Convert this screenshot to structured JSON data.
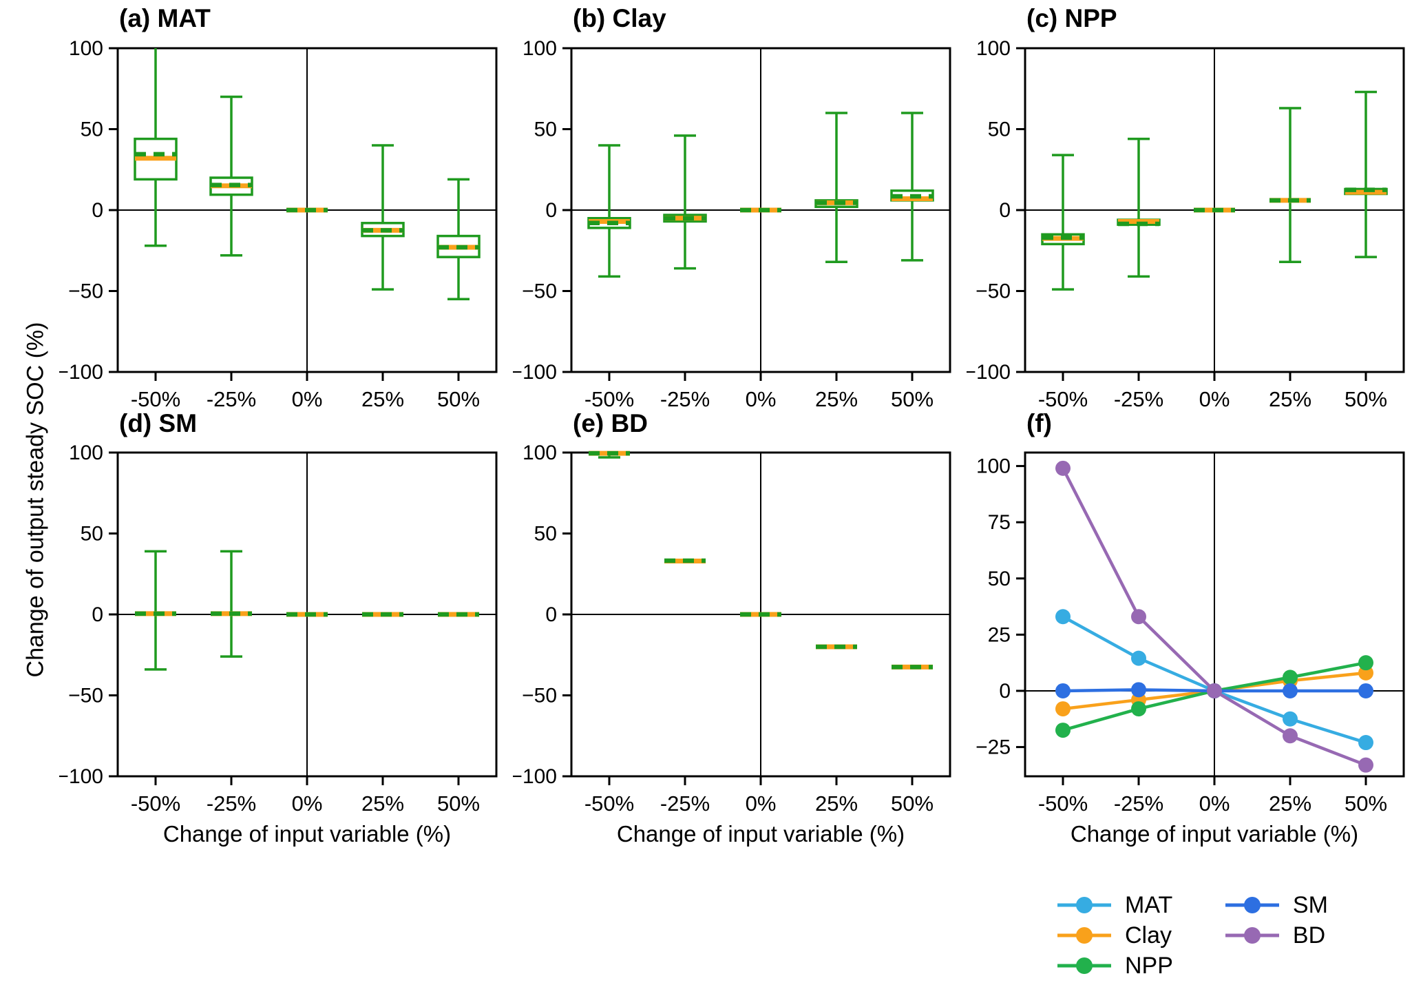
{
  "figure": {
    "ylabel": "Change of output steady SOC (%)",
    "xlabel": "Change of input variable (%)",
    "background": "#ffffff"
  },
  "colors": {
    "box_green": "#1f9a1f",
    "median_orange": "#f9a11b",
    "axis_black": "#000000",
    "MAT": "#36ace2",
    "Clay": "#f9a11b",
    "NPP": "#22b14c",
    "SM": "#2d6fe1",
    "BD": "#9769b3"
  },
  "legend": {
    "items": [
      {
        "label": "MAT",
        "color_key": "MAT"
      },
      {
        "label": "Clay",
        "color_key": "Clay"
      },
      {
        "label": "NPP",
        "color_key": "NPP"
      },
      {
        "label": "SM",
        "color_key": "SM"
      },
      {
        "label": "BD",
        "color_key": "BD"
      }
    ]
  },
  "chart_data": [
    {
      "id": "a",
      "type": "box",
      "title": "(a) MAT",
      "categories": [
        "-50%",
        "-25%",
        "0%",
        "25%",
        "50%"
      ],
      "ylim": [
        -100,
        100
      ],
      "yticks": [
        100,
        50,
        0,
        -50,
        -100
      ],
      "yticklabels": [
        "100",
        "50",
        "0",
        "−50",
        "−100"
      ],
      "boxes": [
        {
          "whislo": -22,
          "q1": 19,
          "med": 32,
          "mean": 34.5,
          "q3": 44,
          "whishi": 100,
          "cap_hi": false
        },
        {
          "whislo": -28,
          "q1": 9.5,
          "med": 15,
          "mean": 15.5,
          "q3": 20,
          "whishi": 70
        },
        {
          "whislo": 0,
          "q1": 0,
          "med": 0,
          "mean": 0,
          "q3": 0,
          "whishi": 0
        },
        {
          "whislo": -49,
          "q1": -16,
          "med": -12.5,
          "mean": -12.5,
          "q3": -8,
          "whishi": 40
        },
        {
          "whislo": -55,
          "q1": -29,
          "med": -23,
          "mean": -23,
          "q3": -16,
          "whishi": 19
        }
      ]
    },
    {
      "id": "b",
      "type": "box",
      "title": "(b) Clay",
      "categories": [
        "-50%",
        "-25%",
        "0%",
        "25%",
        "50%"
      ],
      "ylim": [
        -100,
        100
      ],
      "yticks": [
        100,
        50,
        0,
        -50,
        -100
      ],
      "yticklabels": [
        "100",
        "50",
        "0",
        "−50",
        "−100"
      ],
      "boxes": [
        {
          "whislo": -41,
          "q1": -11,
          "med": -7,
          "mean": -8,
          "q3": -5,
          "whishi": 40
        },
        {
          "whislo": -36,
          "q1": -7,
          "med": -5,
          "mean": -5,
          "q3": -3,
          "whishi": 46
        },
        {
          "whislo": 0,
          "q1": 0,
          "med": 0,
          "mean": 0,
          "q3": 0,
          "whishi": 0
        },
        {
          "whislo": -32,
          "q1": 2,
          "med": 4.5,
          "mean": 4.5,
          "q3": 6,
          "whishi": 60
        },
        {
          "whislo": -31,
          "q1": 6,
          "med": 7,
          "mean": 8.5,
          "q3": 12,
          "whishi": 60
        }
      ]
    },
    {
      "id": "c",
      "type": "box",
      "title": "(c) NPP",
      "categories": [
        "-50%",
        "-25%",
        "0%",
        "25%",
        "50%"
      ],
      "ylim": [
        -100,
        100
      ],
      "yticks": [
        100,
        50,
        0,
        -50,
        -100
      ],
      "yticklabels": [
        "100",
        "50",
        "0",
        "−50",
        "−100"
      ],
      "boxes": [
        {
          "whislo": -49,
          "q1": -21,
          "med": -17.5,
          "mean": -17,
          "q3": -15,
          "whishi": 34
        },
        {
          "whislo": -41,
          "q1": -9,
          "med": -7,
          "mean": -8.5,
          "q3": -6,
          "whishi": 44
        },
        {
          "whislo": 0,
          "q1": 0,
          "med": 0,
          "mean": 0,
          "q3": 0,
          "whishi": 0
        },
        {
          "whislo": -32,
          "q1": 4.5,
          "med": 6,
          "mean": 6,
          "q3": 7,
          "whishi": 63
        },
        {
          "whislo": -29,
          "q1": 10,
          "med": 11,
          "mean": 12.5,
          "q3": 13,
          "whishi": 73
        }
      ]
    },
    {
      "id": "d",
      "type": "box",
      "title": "(d) SM",
      "categories": [
        "-50%",
        "-25%",
        "0%",
        "25%",
        "50%"
      ],
      "ylim": [
        -100,
        100
      ],
      "yticks": [
        100,
        50,
        0,
        -50,
        -100
      ],
      "yticklabels": [
        "100",
        "50",
        "0",
        "−50",
        "−100"
      ],
      "boxes": [
        {
          "whislo": -34,
          "q1": -0.5,
          "med": 0.5,
          "mean": 0.5,
          "q3": 1.3,
          "whishi": 39
        },
        {
          "whislo": -26,
          "q1": -0.3,
          "med": 0.5,
          "mean": 0.5,
          "q3": 1.3,
          "whishi": 39
        },
        {
          "whislo": 0,
          "q1": 0,
          "med": 0,
          "mean": 0,
          "q3": 0,
          "whishi": 0
        },
        {
          "whislo": 0,
          "q1": 0,
          "med": 0,
          "mean": 0,
          "q3": 0,
          "whishi": 0
        },
        {
          "whislo": 0,
          "q1": 0,
          "med": 0,
          "mean": 0,
          "q3": 0,
          "whishi": 0
        }
      ]
    },
    {
      "id": "e",
      "type": "box",
      "title": "(e) BD",
      "categories": [
        "-50%",
        "-25%",
        "0%",
        "25%",
        "50%"
      ],
      "ylim": [
        -100,
        100
      ],
      "yticks": [
        100,
        50,
        0,
        -50,
        -100
      ],
      "yticklabels": [
        "100",
        "50",
        "0",
        "−50",
        "−100"
      ],
      "boxes": [
        {
          "whislo": 97,
          "q1": 99,
          "med": 99.5,
          "mean": 99.5,
          "q3": 100,
          "whishi": 100
        },
        {
          "whislo": 33,
          "q1": 33,
          "med": 33,
          "mean": 33.2,
          "q3": 33.5,
          "whishi": 33.5
        },
        {
          "whislo": 0,
          "q1": 0,
          "med": 0,
          "mean": 0,
          "q3": 0,
          "whishi": 0
        },
        {
          "whislo": -20.5,
          "q1": -20.5,
          "med": -20,
          "mean": -20,
          "q3": -19.5,
          "whishi": -19.5
        },
        {
          "whislo": -33,
          "q1": -33,
          "med": -32.5,
          "mean": -32.5,
          "q3": -32,
          "whishi": -32
        }
      ]
    },
    {
      "id": "f",
      "type": "line",
      "title": "(f)",
      "categories": [
        "-50%",
        "-25%",
        "0%",
        "25%",
        "50%"
      ],
      "ylim": [
        -38,
        106
      ],
      "yticks": [
        100,
        75,
        50,
        25,
        0,
        -25
      ],
      "yticklabels": [
        "100",
        "75",
        "50",
        "25",
        "0",
        "−25"
      ],
      "series": [
        {
          "name": "MAT",
          "values": [
            33,
            14.5,
            0,
            -12.5,
            -23
          ]
        },
        {
          "name": "Clay",
          "values": [
            -8,
            -4,
            0,
            4.5,
            8
          ]
        },
        {
          "name": "NPP",
          "values": [
            -17.5,
            -8,
            0,
            6,
            12.5
          ]
        },
        {
          "name": "SM",
          "values": [
            0,
            0.5,
            0,
            0,
            0
          ]
        },
        {
          "name": "BD",
          "values": [
            99,
            33,
            0,
            -20,
            -33
          ]
        }
      ]
    }
  ]
}
